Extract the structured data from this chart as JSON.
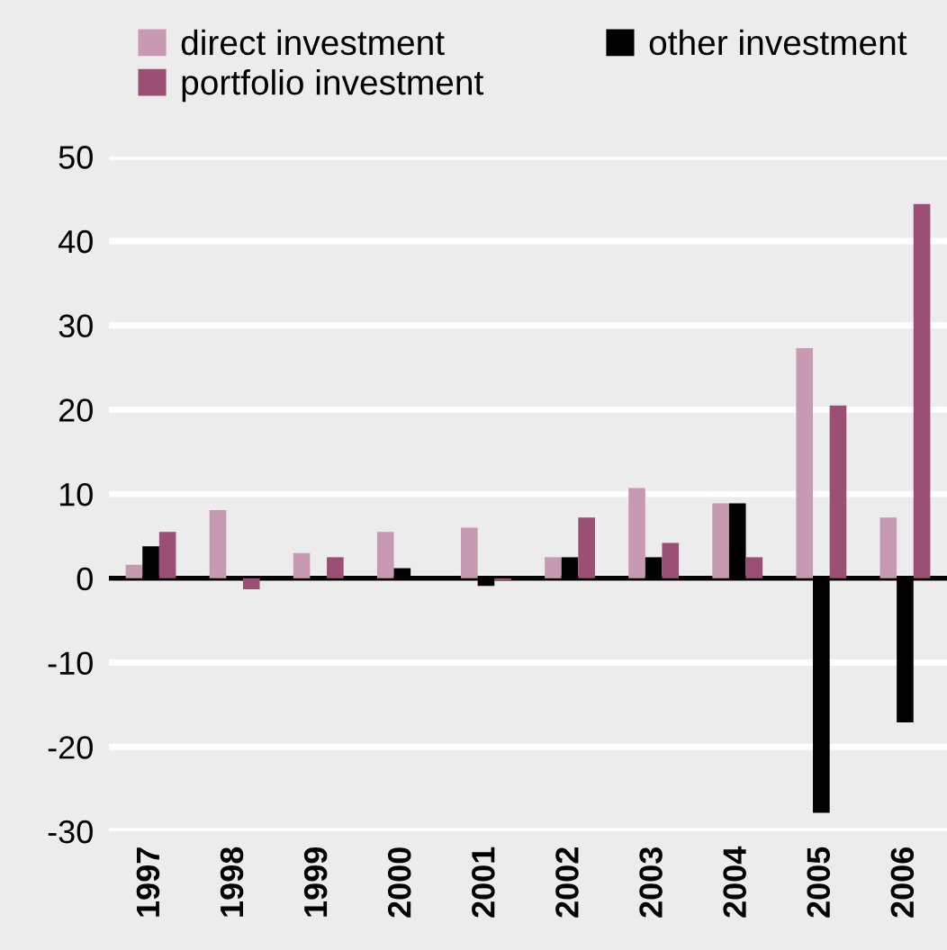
{
  "chart_data": {
    "type": "bar",
    "categories": [
      "1997",
      "1998",
      "1999",
      "2000",
      "2001",
      "2002",
      "2003",
      "2004",
      "2005",
      "2006"
    ],
    "series": [
      {
        "name": "direct investment",
        "color": "#c89ab1",
        "values": [
          1.6,
          8.1,
          3.0,
          5.5,
          6.0,
          2.5,
          10.7,
          8.9,
          27.3,
          7.2
        ]
      },
      {
        "name": "other investment",
        "color": "#000000",
        "values": [
          3.8,
          null,
          null,
          1.2,
          -0.9,
          2.5,
          2.5,
          8.9,
          -27.8,
          -17.1
        ]
      },
      {
        "name": "portfolio investment",
        "color": "#9b4f75",
        "values": [
          5.5,
          -1.3,
          2.5,
          null,
          -0.3,
          7.2,
          4.2,
          2.5,
          20.5,
          44.4
        ]
      }
    ],
    "ylim": [
      -30,
      50
    ],
    "yticks": [
      -30,
      -20,
      -10,
      0,
      10,
      20,
      30,
      40,
      50
    ],
    "grid": "y",
    "legend": "top"
  }
}
